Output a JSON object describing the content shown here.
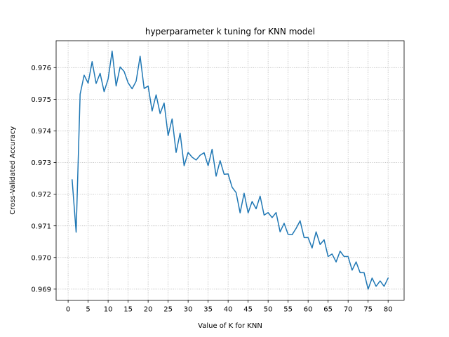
{
  "chart_data": {
    "type": "line",
    "title": "hyperparameter k tuning for KNN model",
    "xlabel": "Value of K for KNN",
    "ylabel": "Cross-Validated Accuracy",
    "xlim": [
      -3,
      84
    ],
    "ylim": [
      0.96865,
      0.97685
    ],
    "xticks": [
      0,
      5,
      10,
      15,
      20,
      25,
      30,
      35,
      40,
      45,
      50,
      55,
      60,
      65,
      70,
      75,
      80
    ],
    "yticks": [
      0.969,
      0.97,
      0.971,
      0.972,
      0.973,
      0.974,
      0.975,
      0.976
    ],
    "ytick_labels": [
      "0.969",
      "0.970",
      "0.971",
      "0.972",
      "0.973",
      "0.974",
      "0.975",
      "0.976"
    ],
    "grid": true,
    "line_color": "#1f77b4",
    "series": [
      {
        "x": [
          1,
          2,
          3,
          4,
          5,
          6,
          7,
          8,
          9,
          10,
          11,
          12,
          13,
          14,
          15,
          16,
          17,
          18,
          19,
          20,
          21,
          22,
          23,
          24,
          25,
          26,
          27,
          28,
          29,
          30,
          31,
          32,
          33,
          34,
          35,
          36,
          37,
          38,
          39,
          40,
          41,
          42,
          43,
          44,
          45,
          46,
          47,
          48,
          49,
          50,
          51,
          52,
          53,
          54,
          55,
          56,
          57,
          58,
          59,
          60,
          61,
          62,
          63,
          64,
          65,
          66,
          67,
          68,
          69,
          70,
          71,
          72,
          73,
          74,
          75,
          76,
          77,
          78,
          79,
          80
        ],
        "values": [
          0.97246,
          0.9708,
          0.97516,
          0.97576,
          0.97551,
          0.97619,
          0.9755,
          0.97582,
          0.97524,
          0.97564,
          0.97652,
          0.97542,
          0.97602,
          0.97588,
          0.97552,
          0.97533,
          0.97557,
          0.97636,
          0.97534,
          0.97542,
          0.97463,
          0.97514,
          0.97455,
          0.97488,
          0.97385,
          0.97438,
          0.97332,
          0.97393,
          0.9729,
          0.97332,
          0.97317,
          0.97308,
          0.97323,
          0.97331,
          0.9729,
          0.97342,
          0.97257,
          0.97306,
          0.97263,
          0.97264,
          0.97222,
          0.97205,
          0.97141,
          0.97203,
          0.97141,
          0.97177,
          0.97154,
          0.97194,
          0.97134,
          0.97142,
          0.97126,
          0.97142,
          0.97081,
          0.97108,
          0.97073,
          0.97072,
          0.97092,
          0.97116,
          0.97063,
          0.97063,
          0.9703,
          0.97081,
          0.97041,
          0.97056,
          0.97003,
          0.97011,
          0.96986,
          0.9702,
          0.97003,
          0.97003,
          0.9696,
          0.96986,
          0.96952,
          0.96952,
          0.969,
          0.96935,
          0.96909,
          0.96926,
          0.96909,
          0.96935
        ]
      }
    ]
  }
}
